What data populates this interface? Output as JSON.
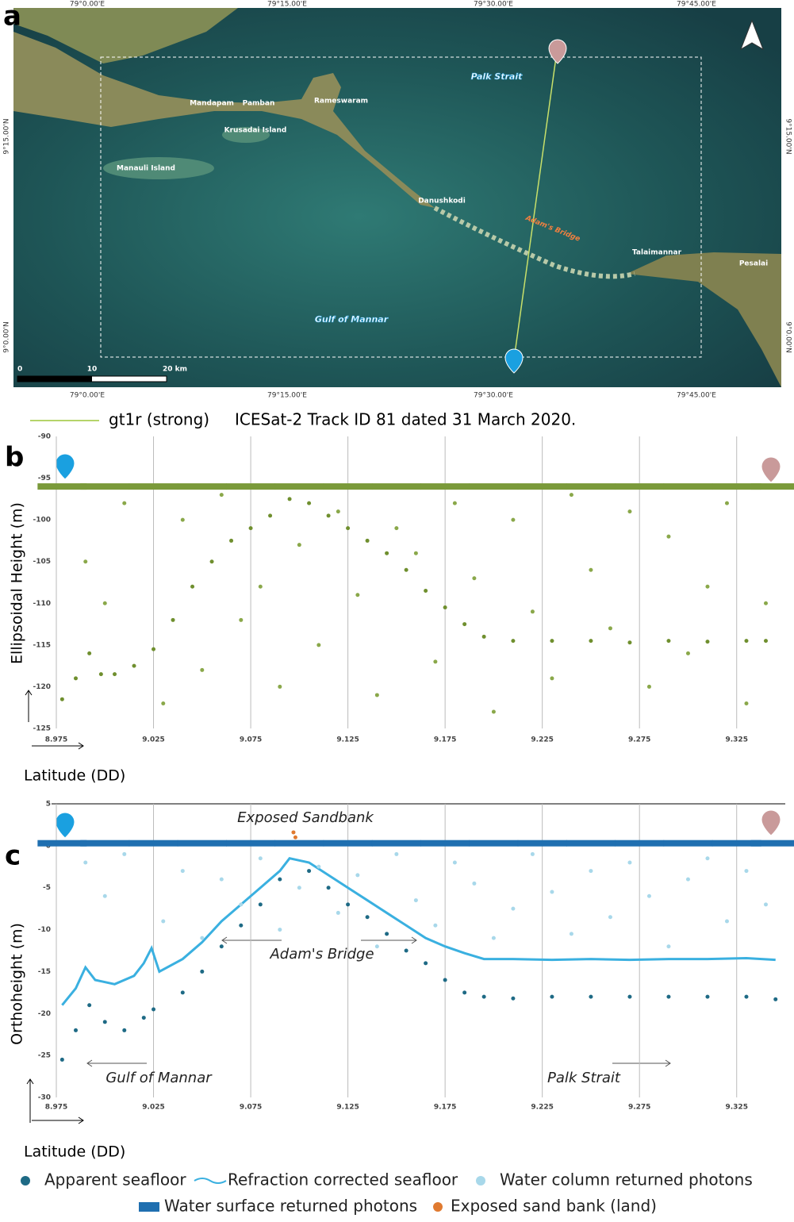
{
  "map": {
    "panel": "a",
    "lon_labels": [
      "79°0.00'E",
      "79°15.00'E",
      "79°30.00'E",
      "79°45.00'E"
    ],
    "lat_labels": [
      "9°15.00'N",
      "9°0.00'N"
    ],
    "places": [
      "Mandapam",
      "Pamban",
      "Rameswaram",
      "Krusadai Island",
      "Manauli Island",
      "Danushkodi",
      "Talaimannar",
      "Pesalai"
    ],
    "water_labels": [
      "Palk Strait",
      "Gulf of Mannar"
    ],
    "feature_label": "Adam's Bridge",
    "scale_labels": [
      "0",
      "10",
      "20 km"
    ]
  },
  "track_legend": {
    "label": "gt1r (strong)",
    "caption": "ICESat-2 Track ID 81 dated 31 March 2020."
  },
  "chart_data": [
    {
      "type": "scatter",
      "panel": "b",
      "y_label": "Ellipsoidal Height (m)",
      "x_label": "Latitude (DD)",
      "xlim": [
        8.975,
        9.35
      ],
      "ylim": [
        -125,
        -90
      ],
      "xticks": [
        8.975,
        9.025,
        9.075,
        9.125,
        9.175,
        9.225,
        9.275,
        9.325
      ],
      "yticks": [
        -125,
        -120,
        -115,
        -110,
        -105,
        -100,
        -95,
        -90
      ],
      "grid": true,
      "series": [
        {
          "color": "#7a9a3a",
          "mode": "band",
          "x": [
            8.978,
            9.0,
            9.025,
            9.05,
            9.075,
            9.1,
            9.125,
            9.15,
            9.175,
            9.2,
            9.225,
            9.25,
            9.275,
            9.3,
            9.325,
            9.345
          ],
          "y": [
            -96,
            -96,
            -96,
            -96,
            -96,
            -96,
            -96,
            -96,
            -96,
            -96,
            -96,
            -96,
            -96,
            -96,
            -96,
            -96
          ]
        },
        {
          "color": "#6f8f2e",
          "mode": "points",
          "x": [
            8.978,
            8.985,
            8.992,
            8.998,
            9.005,
            9.015,
            9.025,
            9.035,
            9.045,
            9.055,
            9.065,
            9.075,
            9.085,
            9.095,
            9.105,
            9.115,
            9.125,
            9.135,
            9.145,
            9.155,
            9.165,
            9.175,
            9.185,
            9.195,
            9.21,
            9.23,
            9.25,
            9.27,
            9.29,
            9.31,
            9.33,
            9.34
          ],
          "y": [
            -121.5,
            -119,
            -116,
            -118.5,
            -118.5,
            -117.5,
            -115.5,
            -112,
            -108,
            -105,
            -102.5,
            -101,
            -99.5,
            -97.5,
            -98,
            -99.5,
            -101,
            -102.5,
            -104,
            -106,
            -108.5,
            -110.5,
            -112.5,
            -114,
            -114.5,
            -114.5,
            -114.5,
            -114.7,
            -114.5,
            -114.6,
            -114.5,
            -114.5
          ]
        },
        {
          "color": "#8aa84a",
          "mode": "points",
          "x": [
            8.99,
            9.0,
            9.01,
            9.03,
            9.04,
            9.05,
            9.06,
            9.07,
            9.08,
            9.09,
            9.1,
            9.11,
            9.12,
            9.13,
            9.14,
            9.15,
            9.16,
            9.17,
            9.18,
            9.19,
            9.2,
            9.21,
            9.22,
            9.23,
            9.24,
            9.25,
            9.26,
            9.27,
            9.28,
            9.29,
            9.3,
            9.31,
            9.32,
            9.33,
            9.34
          ],
          "y": [
            -105,
            -110,
            -98,
            -122,
            -100,
            -118,
            -97,
            -112,
            -108,
            -120,
            -103,
            -115,
            -99,
            -109,
            -121,
            -101,
            -104,
            -117,
            -98,
            -107,
            -123,
            -100,
            -111,
            -119,
            -97,
            -106,
            -113,
            -99,
            -120,
            -102,
            -116,
            -108,
            -98,
            -122,
            -110
          ]
        }
      ]
    },
    {
      "type": "scatter",
      "panel": "c",
      "y_label": "Orthoheight (m)",
      "x_label": "Latitude (DD)",
      "xlim": [
        8.975,
        9.35
      ],
      "ylim": [
        -30,
        5
      ],
      "xticks": [
        8.975,
        9.025,
        9.075,
        9.125,
        9.175,
        9.225,
        9.275,
        9.325
      ],
      "yticks": [
        -30,
        -25,
        -20,
        -15,
        -10,
        -5,
        0,
        5
      ],
      "grid": true,
      "annotations": [
        "Exposed Sandbank",
        "Adam's Bridge",
        "Gulf of Mannar",
        "Palk Strait"
      ],
      "series": [
        {
          "name": "Apparent seafloor",
          "color": "#1e6a85",
          "mode": "points",
          "x": [
            8.978,
            8.985,
            8.992,
            9.0,
            9.01,
            9.02,
            9.025,
            9.04,
            9.05,
            9.06,
            9.07,
            9.08,
            9.09,
            9.105,
            9.115,
            9.125,
            9.135,
            9.145,
            9.155,
            9.165,
            9.175,
            9.185,
            9.195,
            9.21,
            9.23,
            9.25,
            9.27,
            9.29,
            9.31,
            9.33,
            9.345
          ],
          "y": [
            -25.5,
            -22,
            -19,
            -21,
            -22,
            -20.5,
            -19.5,
            -17.5,
            -15,
            -12,
            -9.5,
            -7,
            -4,
            -3,
            -5,
            -7,
            -8.5,
            -10.5,
            -12.5,
            -14,
            -16,
            -17.5,
            -18,
            -18.2,
            -18,
            -18,
            -18,
            -18,
            -18,
            -18,
            -18.3
          ]
        },
        {
          "name": "Refraction corrected seafloor",
          "color": "#3ab0e0",
          "mode": "line",
          "x": [
            8.978,
            8.985,
            8.99,
            8.995,
            9.005,
            9.015,
            9.02,
            9.024,
            9.028,
            9.04,
            9.05,
            9.06,
            9.07,
            9.08,
            9.09,
            9.095,
            9.105,
            9.115,
            9.125,
            9.135,
            9.145,
            9.155,
            9.165,
            9.175,
            9.185,
            9.195,
            9.21,
            9.23,
            9.25,
            9.27,
            9.29,
            9.31,
            9.33,
            9.345
          ],
          "y": [
            -19,
            -17,
            -14.5,
            -16,
            -16.5,
            -15.5,
            -14,
            -12.2,
            -15,
            -13.5,
            -11.5,
            -9,
            -7,
            -5,
            -3,
            -1.5,
            -2,
            -3.5,
            -5,
            -6.5,
            -8,
            -9.5,
            -11,
            -12,
            -12.8,
            -13.5,
            -13.5,
            -13.6,
            -13.5,
            -13.6,
            -13.5,
            -13.5,
            -13.4,
            -13.6
          ]
        },
        {
          "name": "Water column returned photons",
          "color": "#a8d8ea",
          "mode": "points",
          "x": [
            8.99,
            9.0,
            9.01,
            9.03,
            9.04,
            9.05,
            9.06,
            9.07,
            9.08,
            9.09,
            9.1,
            9.11,
            9.12,
            9.13,
            9.14,
            9.15,
            9.16,
            9.17,
            9.18,
            9.19,
            9.2,
            9.21,
            9.22,
            9.23,
            9.24,
            9.25,
            9.26,
            9.27,
            9.28,
            9.29,
            9.3,
            9.31,
            9.32,
            9.33,
            9.34
          ],
          "y": [
            -2,
            -6,
            -1,
            -9,
            -3,
            -11,
            -4,
            -7,
            -1.5,
            -10,
            -5,
            -2.5,
            -8,
            -3.5,
            -12,
            -1,
            -6.5,
            -9.5,
            -2,
            -4.5,
            -11,
            -7.5,
            -1,
            -5.5,
            -10.5,
            -3,
            -8.5,
            -2,
            -6,
            -12,
            -4,
            -1.5,
            -9,
            -3,
            -7
          ]
        },
        {
          "name": "Water surface returned photons",
          "color": "#1f6fb0",
          "mode": "band",
          "x": [
            8.978,
            9.0,
            9.025,
            9.05,
            9.075,
            9.1,
            9.125,
            9.15,
            9.175,
            9.2,
            9.225,
            9.25,
            9.275,
            9.3,
            9.325,
            9.345
          ],
          "y": [
            0.3,
            0.3,
            0.3,
            0.3,
            0.3,
            0.3,
            0.3,
            0.3,
            0.3,
            0.3,
            0.3,
            0.3,
            0.3,
            0.3,
            0.3,
            0.3
          ]
        },
        {
          "name": "Exposed sand bank (land)",
          "color": "#e07a30",
          "mode": "points",
          "x": [
            9.097,
            9.098
          ],
          "y": [
            1.6,
            1.0
          ]
        }
      ]
    }
  ]
}
